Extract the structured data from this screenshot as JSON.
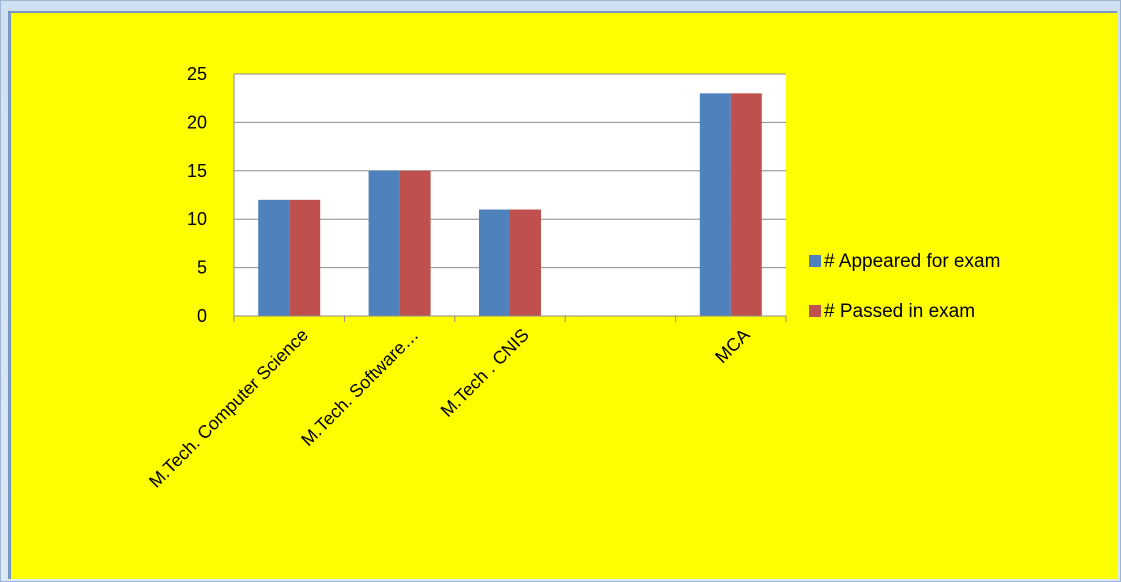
{
  "chart_data": {
    "type": "bar",
    "categories": [
      "M.Tech. Computer Science",
      "M.Tech. Software…",
      "M.Tech . CNIS",
      "",
      "MCA"
    ],
    "series": [
      {
        "name": "# Appeared for exam",
        "values": [
          12,
          15,
          11,
          0,
          23
        ],
        "color": "#4f81bd"
      },
      {
        "name": "# Passed in exam",
        "values": [
          12,
          15,
          11,
          0,
          23
        ],
        "color": "#c0504d"
      }
    ],
    "ylim": [
      0,
      25
    ],
    "yticks": [
      0,
      5,
      10,
      15,
      20,
      25
    ],
    "grid": true,
    "legend": "right",
    "plot_background": "#ffffff",
    "page_background": "#ffff00"
  }
}
